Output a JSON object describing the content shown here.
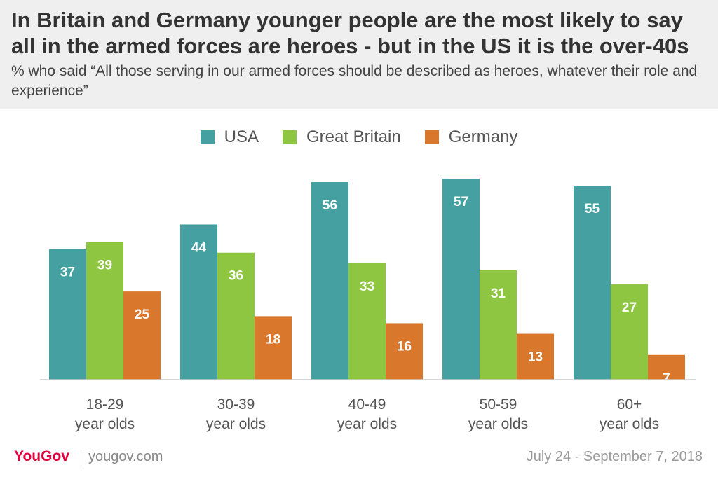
{
  "header": {
    "title": "In Britain and Germany younger people are the most likely to say all in the armed forces are heroes - but in the US it is the over-40s",
    "subtitle": "% who said “All those serving in our armed forces should be described as heroes, whatever their role and experience”"
  },
  "footer": {
    "logo": "YouGov",
    "site": "yougov.com",
    "date": "July 24 - September 7, 2018"
  },
  "colors": {
    "usa": "#45a0a1",
    "gb": "#8ec641",
    "de": "#d9782d",
    "header_bg": "#efefef"
  },
  "chart_data": {
    "type": "bar",
    "categories": [
      [
        "18-29",
        "year olds"
      ],
      [
        "30-39",
        "year olds"
      ],
      [
        "40-49",
        "year olds"
      ],
      [
        "50-59",
        "year olds"
      ],
      [
        "60+",
        "year olds"
      ]
    ],
    "series": [
      {
        "name": "USA",
        "color": "#45a0a1",
        "values": [
          37,
          44,
          56,
          57,
          55
        ]
      },
      {
        "name": "Great Britain",
        "color": "#8ec641",
        "values": [
          39,
          36,
          33,
          31,
          27
        ]
      },
      {
        "name": "Germany",
        "color": "#d9782d",
        "values": [
          25,
          18,
          16,
          13,
          7
        ]
      }
    ],
    "ylim": [
      0,
      57
    ],
    "legend_position": "top-center",
    "grid": false,
    "data_labels": true
  }
}
